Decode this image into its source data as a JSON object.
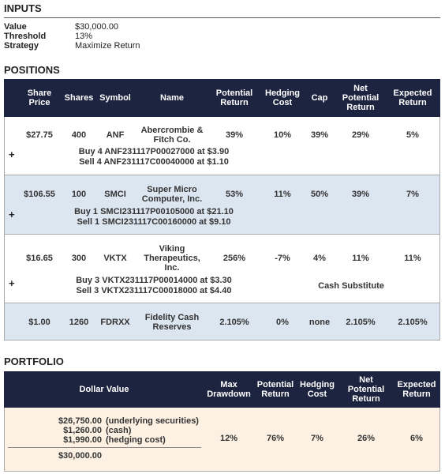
{
  "inputs": {
    "title": "INPUTS",
    "rows": [
      {
        "label": "Value",
        "value": "$30,000.00"
      },
      {
        "label": "Threshold",
        "value": "13%"
      },
      {
        "label": "Strategy",
        "value": "Maximize Return"
      }
    ]
  },
  "positions": {
    "title": "POSITIONS",
    "columns": [
      "Share Price",
      "Shares",
      "Symbol",
      "Name",
      "Potential Return",
      "Hedging Cost",
      "Cap",
      "Net Potential Return",
      "Expected Return"
    ],
    "rows": [
      {
        "cells": [
          "$27.75",
          "400",
          "ANF",
          "Abercrombie & Fitch Co.",
          "39%",
          "10%",
          "39%",
          "29%",
          "5%"
        ],
        "expand": "+",
        "hedges": [
          "Buy 4 ANF231117P00027000 at $3.90",
          "Sell 4 ANF231117C00040000 at $1.10"
        ]
      },
      {
        "cells": [
          "$106.55",
          "100",
          "SMCI",
          "Super Micro Computer, Inc.",
          "53%",
          "11%",
          "50%",
          "39%",
          "7%"
        ],
        "expand": "+",
        "hedges": [
          "Buy 1 SMCI231117P00105000 at $21.10",
          "Sell 1 SMCI231117C00160000 at $9.10"
        ]
      },
      {
        "cells": [
          "$16.65",
          "300",
          "VKTX",
          "Viking Therapeutics, Inc.",
          "256%",
          "-7%",
          "4%",
          "11%",
          "11%"
        ],
        "expand": "+",
        "hedges": [
          "Buy 3 VKTX231117P00014000 at $3.30",
          "Sell 3 VKTX231117C00018000 at $4.40"
        ],
        "note": "Cash Substitute"
      },
      {
        "cells": [
          "$1.00",
          "1260",
          "FDRXX",
          "Fidelity Cash Reserves",
          "2.105%",
          "0%",
          "none",
          "2.105%",
          "2.105%"
        ]
      }
    ]
  },
  "portfolio": {
    "title": "PORTFOLIO",
    "columns": [
      "Dollar Value",
      "Max Drawdown",
      "Potential Return",
      "Hedging Cost",
      "Net Potential Return",
      "Expected Return"
    ],
    "holdings": [
      {
        "amount": "$26,750.00",
        "label": "(underlying securities)"
      },
      {
        "amount": "$1,260.00",
        "label": "(cash)"
      },
      {
        "amount": "$1,990.00",
        "label": "(hedging cost)"
      }
    ],
    "total": "$30,000.00",
    "metrics": [
      "12%",
      "76%",
      "7%",
      "26%",
      "6%"
    ]
  }
}
